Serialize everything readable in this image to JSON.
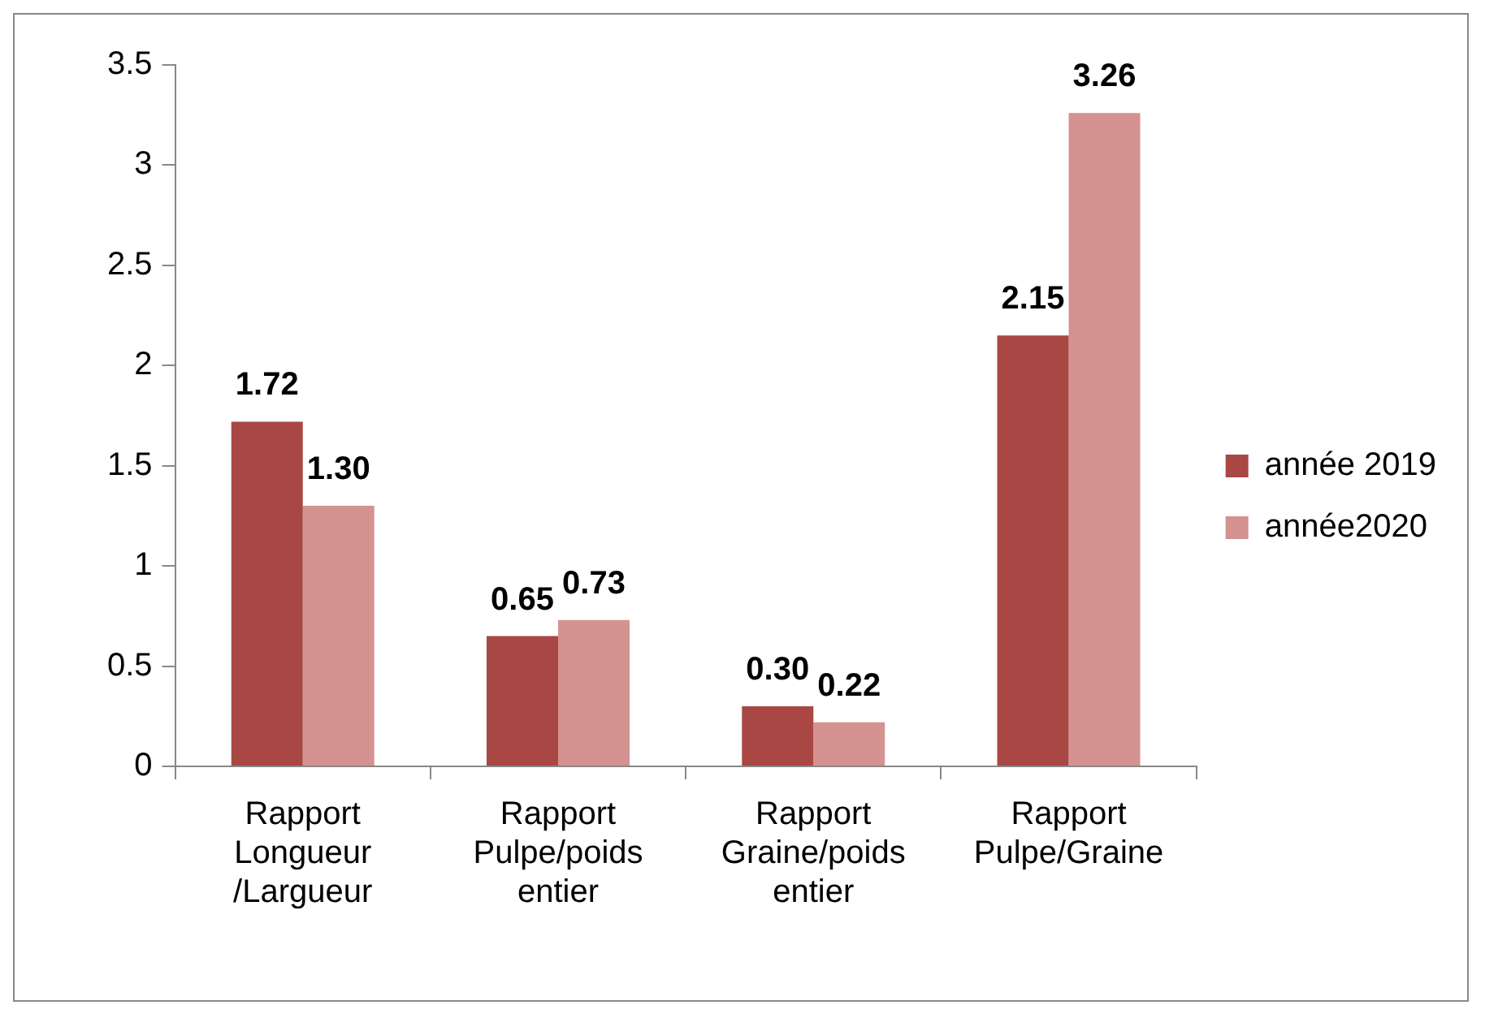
{
  "chart_data": {
    "type": "bar",
    "categories": [
      "Rapport Longueur /Largueur",
      "Rapport Pulpe/poids entier",
      "Rapport Graine/poids entier",
      "Rapport Pulpe/Graine"
    ],
    "series": [
      {
        "name": "année 2019",
        "color": "#a84744",
        "values": [
          1.72,
          0.65,
          0.3,
          2.15
        ],
        "value_labels": [
          "1.72",
          "0.65",
          "0.30",
          "2.15"
        ]
      },
      {
        "name": "année2020",
        "color": "#d49290",
        "values": [
          1.3,
          0.73,
          0.22,
          3.26
        ],
        "value_labels": [
          "1.30",
          "0.73",
          "0.22",
          "3.26"
        ]
      }
    ],
    "ylim": [
      0,
      3.5
    ],
    "yticks": [
      0,
      0.5,
      1,
      1.5,
      2,
      2.5,
      3,
      3.5
    ],
    "grid": false,
    "legend": "right"
  }
}
